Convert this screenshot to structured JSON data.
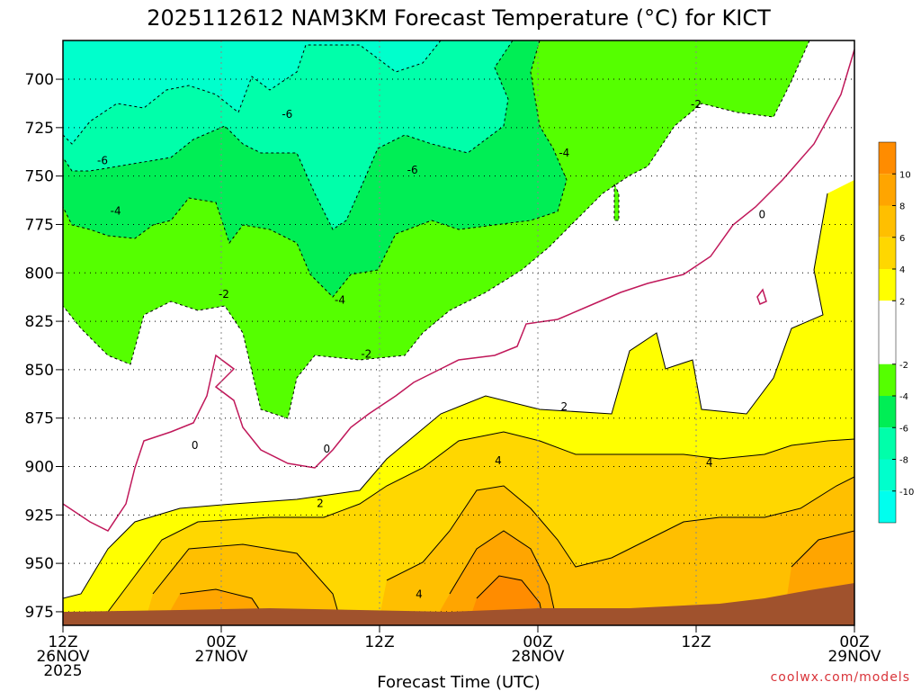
{
  "chart_data": {
    "type": "heatmap",
    "title": "2025112612 NAM3KM Forecast Temperature (°C) for KICT",
    "xlabel": "Forecast Time (UTC)",
    "ylabel": "",
    "credit": "coolwx.com/models",
    "x_ticks": [
      {
        "hour": 0,
        "label1": "12Z",
        "label2": "26NOV",
        "label3": "2025"
      },
      {
        "hour": 12,
        "label1": "00Z",
        "label2": "27NOV",
        "label3": ""
      },
      {
        "hour": 24,
        "label1": "12Z",
        "label2": "",
        "label3": ""
      },
      {
        "hour": 36,
        "label1": "00Z",
        "label2": "28NOV",
        "label3": ""
      },
      {
        "hour": 48,
        "label1": "12Z",
        "label2": "",
        "label3": ""
      },
      {
        "hour": 60,
        "label1": "00Z",
        "label2": "29NOV",
        "label3": ""
      }
    ],
    "xlim": [
      0,
      60
    ],
    "y_ticks": [
      700,
      725,
      750,
      775,
      800,
      825,
      850,
      875,
      900,
      925,
      950,
      975
    ],
    "ylim": [
      680,
      982
    ],
    "colorbar": {
      "ticks": [
        "10",
        "8",
        "6",
        "4",
        "2",
        "-2",
        "-4",
        "-6",
        "-8",
        "-10"
      ],
      "bands": [
        {
          "range": [
            10,
            12
          ],
          "color": "#ff8c00"
        },
        {
          "range": [
            8,
            10
          ],
          "color": "#ffa500"
        },
        {
          "range": [
            6,
            8
          ],
          "color": "#ffbf00"
        },
        {
          "range": [
            4,
            6
          ],
          "color": "#ffd700"
        },
        {
          "range": [
            2,
            4
          ],
          "color": "#ffff00"
        },
        {
          "range": [
            -2,
            2
          ],
          "color": "#ffffff"
        },
        {
          "range": [
            -4,
            -2
          ],
          "color": "#55ff00"
        },
        {
          "range": [
            -6,
            -4
          ],
          "color": "#00ee55"
        },
        {
          "range": [
            -8,
            -6
          ],
          "color": "#00ffaa"
        },
        {
          "range": [
            -10,
            -8
          ],
          "color": "#00ffcc"
        },
        {
          "range": [
            -12,
            -10
          ],
          "color": "#00ffee"
        }
      ]
    },
    "contour_labels": [
      {
        "text": "-6",
        "hour": 3.0,
        "pressure": 742
      },
      {
        "text": "-4",
        "hour": 4.0,
        "pressure": 768
      },
      {
        "text": "-6",
        "hour": 17.0,
        "pressure": 718
      },
      {
        "text": "-6",
        "hour": 26.5,
        "pressure": 747
      },
      {
        "text": "-4",
        "hour": 38.0,
        "pressure": 738
      },
      {
        "text": "-2",
        "hour": 48.0,
        "pressure": 713
      },
      {
        "text": "0",
        "hour": 53.0,
        "pressure": 770
      },
      {
        "text": "-2",
        "hour": 12.2,
        "pressure": 811
      },
      {
        "text": "-4",
        "hour": 21.0,
        "pressure": 814
      },
      {
        "text": "-2",
        "hour": 23.0,
        "pressure": 842
      },
      {
        "text": "0",
        "hour": 10.0,
        "pressure": 889
      },
      {
        "text": "0",
        "hour": 20.0,
        "pressure": 891
      },
      {
        "text": "2",
        "hour": 19.5,
        "pressure": 919
      },
      {
        "text": "2",
        "hour": 38.0,
        "pressure": 869
      },
      {
        "text": "4",
        "hour": 33.0,
        "pressure": 897
      },
      {
        "text": "4",
        "hour": 49.0,
        "pressure": 898
      },
      {
        "text": "4",
        "hour": 27.0,
        "pressure": 966
      }
    ]
  }
}
